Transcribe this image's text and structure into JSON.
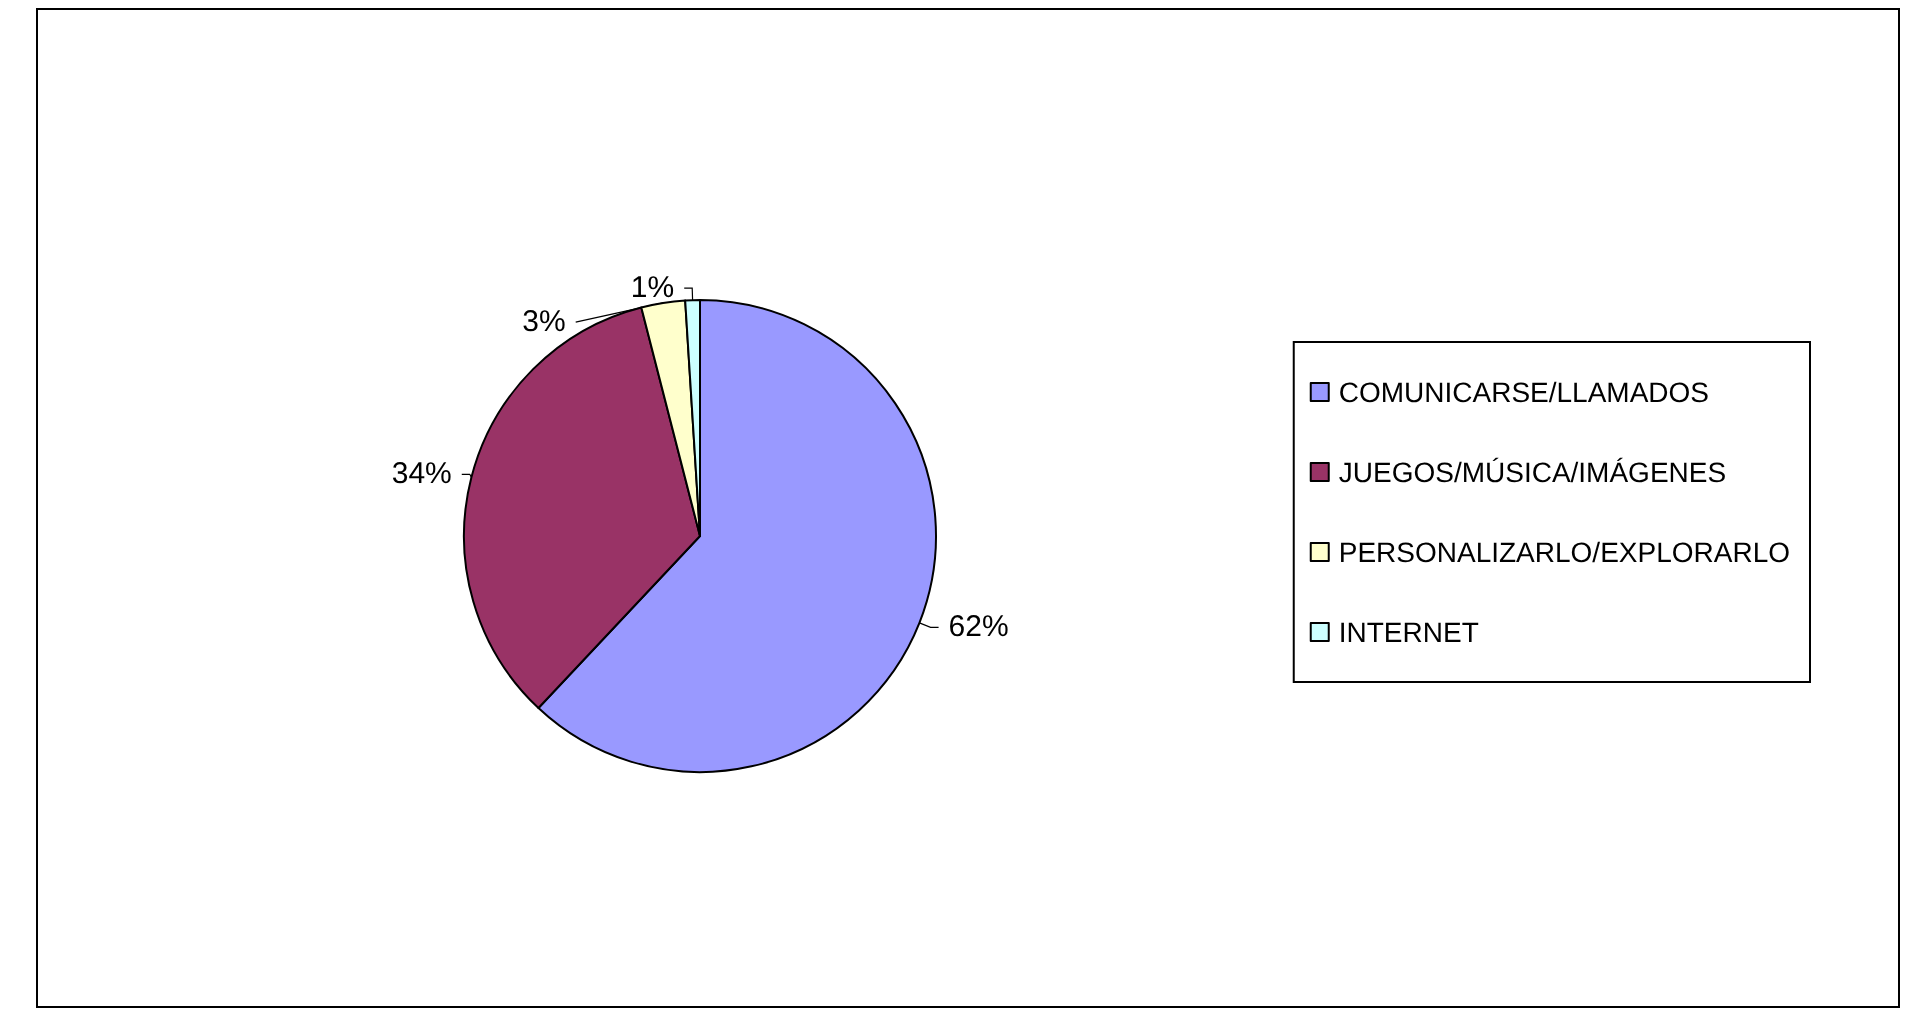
{
  "chart_data": {
    "type": "pie",
    "categories": [
      "COMUNICARSE/LLAMADOS",
      "JUEGOS/MÚSICA/IMÁGENES",
      "PERSONALIZARLO/EXPLORARLO",
      "INTERNET"
    ],
    "values": [
      62,
      34,
      3,
      1
    ],
    "colors": [
      "#9999ff",
      "#993366",
      "#ffffcc",
      "#ccffff"
    ],
    "value_labels": [
      "62%",
      "34%",
      "3%",
      "1%"
    ],
    "legend": "right"
  }
}
